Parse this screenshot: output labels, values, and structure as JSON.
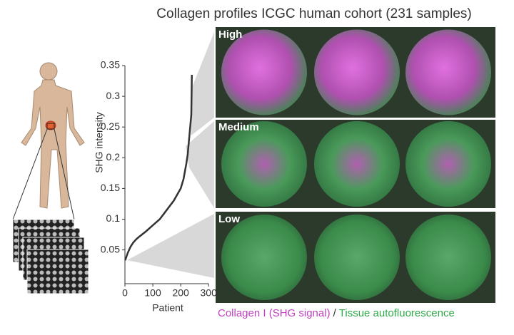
{
  "figure": {
    "title": "Collagen profiles ICGC human cohort (231 samples)",
    "panels": [
      "High",
      "Medium",
      "Low"
    ],
    "legend": {
      "items": [
        {
          "label": "Collagen I (SHG signal)",
          "color": "#c040c0"
        },
        {
          "label": "Tissue autofluorescence",
          "color": "#2eaa4a"
        }
      ],
      "separator": "/"
    }
  },
  "chart_data": {
    "type": "line",
    "x_label": "Patient",
    "y_label": "SHG intensity",
    "color": "#333333",
    "x": [
      1,
      10,
      20,
      30,
      40,
      50,
      75,
      100,
      125,
      150,
      175,
      200,
      210,
      220,
      225,
      230,
      235,
      238,
      240
    ],
    "values": [
      0.033,
      0.045,
      0.055,
      0.062,
      0.067,
      0.071,
      0.08,
      0.09,
      0.1,
      0.115,
      0.13,
      0.15,
      0.165,
      0.19,
      0.205,
      0.23,
      0.255,
      0.27,
      0.335
    ],
    "xlim": [
      0,
      320
    ],
    "ylim": [
      -0.005,
      0.35
    ],
    "xticks": [
      0,
      100,
      200,
      300
    ],
    "yticks": [
      0.05,
      0.1,
      0.15,
      0.2,
      0.25,
      0.3,
      0.35
    ]
  }
}
